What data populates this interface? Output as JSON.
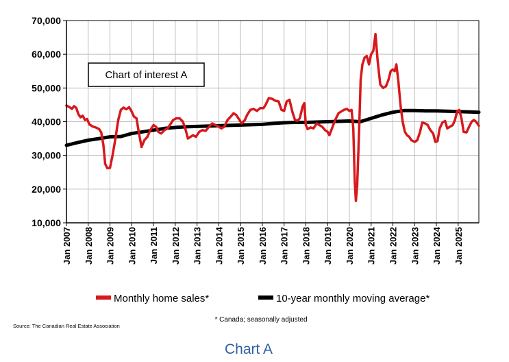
{
  "chart_data": {
    "type": "line",
    "title": "Chart of interest A",
    "caption": "Chart A",
    "footnote": "* Canada; seasonally adjusted",
    "source": "Source: The Canadian Real Estate Association",
    "ylim": [
      10000,
      70000
    ],
    "xlim": [
      2007.0,
      2025.95
    ],
    "y_ticks": [
      10000,
      20000,
      30000,
      40000,
      50000,
      60000,
      70000
    ],
    "y_tick_labels": [
      "10,000",
      "20,000",
      "30,000",
      "40,000",
      "50,000",
      "60,000",
      "70,000"
    ],
    "x_ticks": [
      2007,
      2008,
      2009,
      2010,
      2011,
      2012,
      2013,
      2014,
      2015,
      2016,
      2017,
      2018,
      2019,
      2020,
      2021,
      2022,
      2023,
      2024,
      2025
    ],
    "x_tick_labels": [
      "Jan 2007",
      "Jan 2008",
      "Jan 2009",
      "Jan 2010",
      "Jan 2011",
      "Jan 2012",
      "Jan 2013",
      "Jan 2014",
      "Jan 2015",
      "Jan 2016",
      "Jan 2017",
      "Jan 2018",
      "Jan 2019",
      "Jan 2020",
      "Jan 2021",
      "Jan 2022",
      "Jan 2023",
      "Jan 2024",
      "Jan 2025"
    ],
    "grid": true,
    "legend_position": "bottom",
    "series": [
      {
        "name": "Monthly home sales*",
        "color": "#d7191c",
        "points": [
          [
            2007.0,
            44800
          ],
          [
            2007.15,
            44300
          ],
          [
            2007.25,
            43800
          ],
          [
            2007.35,
            44600
          ],
          [
            2007.45,
            44100
          ],
          [
            2007.55,
            42200
          ],
          [
            2007.65,
            41300
          ],
          [
            2007.75,
            41800
          ],
          [
            2007.85,
            40500
          ],
          [
            2007.95,
            40800
          ],
          [
            2008.05,
            39200
          ],
          [
            2008.2,
            38600
          ],
          [
            2008.35,
            38300
          ],
          [
            2008.5,
            37800
          ],
          [
            2008.6,
            36800
          ],
          [
            2008.7,
            33000
          ],
          [
            2008.78,
            27500
          ],
          [
            2008.88,
            26200
          ],
          [
            2009.0,
            26300
          ],
          [
            2009.12,
            30000
          ],
          [
            2009.25,
            35000
          ],
          [
            2009.38,
            40500
          ],
          [
            2009.5,
            43500
          ],
          [
            2009.62,
            44200
          ],
          [
            2009.75,
            43700
          ],
          [
            2009.88,
            44300
          ],
          [
            2010.0,
            43000
          ],
          [
            2010.1,
            41500
          ],
          [
            2010.22,
            41000
          ],
          [
            2010.32,
            37000
          ],
          [
            2010.45,
            32500
          ],
          [
            2010.58,
            34500
          ],
          [
            2010.72,
            35500
          ],
          [
            2010.85,
            37500
          ],
          [
            2011.0,
            39000
          ],
          [
            2011.12,
            38500
          ],
          [
            2011.22,
            37000
          ],
          [
            2011.35,
            36500
          ],
          [
            2011.5,
            37500
          ],
          [
            2011.65,
            38000
          ],
          [
            2011.8,
            39500
          ],
          [
            2011.9,
            40500
          ],
          [
            2012.05,
            41000
          ],
          [
            2012.2,
            41000
          ],
          [
            2012.35,
            40000
          ],
          [
            2012.48,
            37500
          ],
          [
            2012.58,
            35000
          ],
          [
            2012.7,
            35500
          ],
          [
            2012.82,
            36000
          ],
          [
            2012.95,
            35500
          ],
          [
            2013.1,
            37000
          ],
          [
            2013.25,
            37500
          ],
          [
            2013.4,
            37300
          ],
          [
            2013.55,
            38500
          ],
          [
            2013.7,
            39500
          ],
          [
            2013.85,
            39000
          ],
          [
            2014.0,
            38500
          ],
          [
            2014.12,
            38000
          ],
          [
            2014.25,
            38500
          ],
          [
            2014.4,
            40500
          ],
          [
            2014.55,
            41500
          ],
          [
            2014.68,
            42500
          ],
          [
            2014.8,
            42000
          ],
          [
            2014.95,
            40500
          ],
          [
            2015.05,
            39500
          ],
          [
            2015.2,
            40500
          ],
          [
            2015.3,
            42000
          ],
          [
            2015.45,
            43500
          ],
          [
            2015.6,
            43800
          ],
          [
            2015.75,
            43200
          ],
          [
            2015.9,
            44000
          ],
          [
            2016.05,
            44000
          ],
          [
            2016.15,
            45000
          ],
          [
            2016.3,
            47000
          ],
          [
            2016.45,
            46800
          ],
          [
            2016.6,
            46200
          ],
          [
            2016.75,
            46000
          ],
          [
            2016.88,
            43500
          ],
          [
            2017.0,
            43200
          ],
          [
            2017.12,
            46000
          ],
          [
            2017.25,
            46500
          ],
          [
            2017.38,
            43000
          ],
          [
            2017.5,
            40500
          ],
          [
            2017.62,
            40300
          ],
          [
            2017.72,
            41000
          ],
          [
            2017.85,
            44500
          ],
          [
            2017.93,
            45500
          ],
          [
            2018.0,
            39000
          ],
          [
            2018.08,
            37800
          ],
          [
            2018.22,
            38300
          ],
          [
            2018.35,
            38000
          ],
          [
            2018.5,
            39500
          ],
          [
            2018.62,
            39000
          ],
          [
            2018.75,
            38500
          ],
          [
            2018.88,
            37500
          ],
          [
            2019.0,
            37000
          ],
          [
            2019.08,
            36000
          ],
          [
            2019.2,
            38000
          ],
          [
            2019.35,
            40500
          ],
          [
            2019.5,
            42500
          ],
          [
            2019.62,
            43000
          ],
          [
            2019.75,
            43500
          ],
          [
            2019.88,
            43800
          ],
          [
            2020.0,
            43200
          ],
          [
            2020.1,
            43500
          ],
          [
            2020.18,
            38000
          ],
          [
            2020.25,
            22000
          ],
          [
            2020.3,
            16500
          ],
          [
            2020.36,
            21000
          ],
          [
            2020.45,
            38000
          ],
          [
            2020.52,
            52500
          ],
          [
            2020.6,
            57000
          ],
          [
            2020.7,
            59000
          ],
          [
            2020.8,
            59500
          ],
          [
            2020.9,
            57000
          ],
          [
            2021.0,
            60000
          ],
          [
            2021.1,
            61000
          ],
          [
            2021.2,
            66000
          ],
          [
            2021.3,
            58000
          ],
          [
            2021.42,
            51000
          ],
          [
            2021.55,
            50000
          ],
          [
            2021.68,
            50500
          ],
          [
            2021.8,
            52500
          ],
          [
            2021.9,
            55000
          ],
          [
            2022.0,
            55500
          ],
          [
            2022.08,
            55000
          ],
          [
            2022.16,
            57000
          ],
          [
            2022.25,
            52000
          ],
          [
            2022.35,
            45000
          ],
          [
            2022.45,
            40000
          ],
          [
            2022.55,
            37000
          ],
          [
            2022.65,
            36000
          ],
          [
            2022.75,
            35500
          ],
          [
            2022.85,
            34500
          ],
          [
            2023.0,
            34000
          ],
          [
            2023.12,
            34500
          ],
          [
            2023.25,
            37000
          ],
          [
            2023.35,
            39800
          ],
          [
            2023.48,
            39500
          ],
          [
            2023.6,
            39000
          ],
          [
            2023.72,
            37500
          ],
          [
            2023.85,
            36500
          ],
          [
            2023.95,
            34000
          ],
          [
            2024.05,
            34200
          ],
          [
            2024.15,
            38000
          ],
          [
            2024.28,
            39800
          ],
          [
            2024.4,
            40200
          ],
          [
            2024.5,
            38000
          ],
          [
            2024.62,
            38500
          ],
          [
            2024.75,
            39000
          ],
          [
            2024.85,
            40500
          ],
          [
            2024.95,
            43000
          ],
          [
            2025.05,
            43500
          ],
          [
            2025.15,
            41000
          ],
          [
            2025.25,
            37000
          ],
          [
            2025.38,
            36800
          ],
          [
            2025.5,
            38500
          ],
          [
            2025.62,
            40000
          ],
          [
            2025.72,
            40500
          ],
          [
            2025.82,
            40000
          ],
          [
            2025.95,
            38800
          ]
        ]
      },
      {
        "name": "10-year monthly moving average*",
        "color": "#000000",
        "points": [
          [
            2007.0,
            33000
          ],
          [
            2007.5,
            33800
          ],
          [
            2008.0,
            34500
          ],
          [
            2008.5,
            35000
          ],
          [
            2009.0,
            35500
          ],
          [
            2009.5,
            35600
          ],
          [
            2010.0,
            36500
          ],
          [
            2010.5,
            37000
          ],
          [
            2011.0,
            37500
          ],
          [
            2011.5,
            38000
          ],
          [
            2012.0,
            38300
          ],
          [
            2012.5,
            38500
          ],
          [
            2013.0,
            38600
          ],
          [
            2013.5,
            38700
          ],
          [
            2014.0,
            38800
          ],
          [
            2014.5,
            38900
          ],
          [
            2015.0,
            39000
          ],
          [
            2015.5,
            39100
          ],
          [
            2016.0,
            39200
          ],
          [
            2016.5,
            39500
          ],
          [
            2017.0,
            39700
          ],
          [
            2017.5,
            39800
          ],
          [
            2018.0,
            39800
          ],
          [
            2018.5,
            39900
          ],
          [
            2019.0,
            40000
          ],
          [
            2019.5,
            40100
          ],
          [
            2020.0,
            40200
          ],
          [
            2020.5,
            40000
          ],
          [
            2021.0,
            41000
          ],
          [
            2021.5,
            42000
          ],
          [
            2022.0,
            42800
          ],
          [
            2022.5,
            43300
          ],
          [
            2023.0,
            43300
          ],
          [
            2023.5,
            43200
          ],
          [
            2024.0,
            43200
          ],
          [
            2024.5,
            43100
          ],
          [
            2025.0,
            43000
          ],
          [
            2025.5,
            42900
          ],
          [
            2025.95,
            42800
          ]
        ]
      }
    ]
  }
}
